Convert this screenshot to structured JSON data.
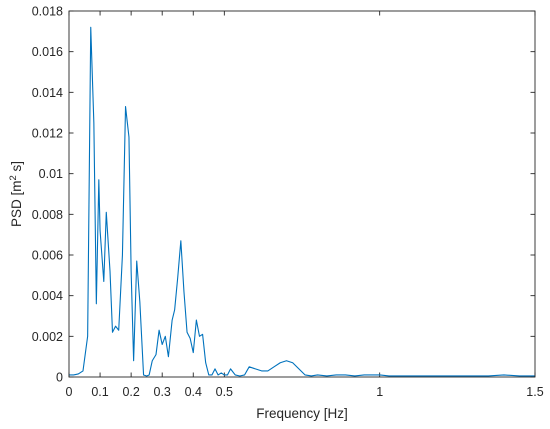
{
  "chart_data": {
    "type": "line",
    "title": "",
    "xlabel": "Frequency [Hz]",
    "ylabel_main": "PSD [m",
    "ylabel_sup": "2",
    "ylabel_tail": " s]",
    "xlim": [
      0,
      1.5
    ],
    "ylim": [
      0,
      0.018
    ],
    "xticks": [
      0,
      0.1,
      0.2,
      0.3,
      0.4,
      0.5,
      1,
      1.5
    ],
    "xtick_labels": [
      "0",
      "0.1",
      "0.2",
      "0.3",
      "0.4",
      "0.5",
      "1",
      "1.5"
    ],
    "yticks": [
      0,
      0.002,
      0.004,
      0.006,
      0.008,
      0.01,
      0.012,
      0.014,
      0.016,
      0.018
    ],
    "ytick_labels": [
      "0",
      "0.002",
      "0.004",
      "0.006",
      "0.008",
      "0.01",
      "0.012",
      "0.014",
      "0.016",
      "0.018"
    ],
    "grid": false,
    "line_color": "#0072BD",
    "series": [
      {
        "x": [
          0,
          0.015,
          0.03,
          0.045,
          0.06,
          0.07,
          0.08,
          0.088,
          0.096,
          0.1,
          0.112,
          0.12,
          0.132,
          0.14,
          0.15,
          0.16,
          0.172,
          0.182,
          0.193,
          0.2,
          0.208,
          0.218,
          0.228,
          0.24,
          0.25,
          0.258,
          0.268,
          0.28,
          0.29,
          0.3,
          0.31,
          0.32,
          0.332,
          0.34,
          0.35,
          0.36,
          0.37,
          0.38,
          0.39,
          0.4,
          0.41,
          0.42,
          0.43,
          0.44,
          0.45,
          0.46,
          0.47,
          0.48,
          0.49,
          0.5,
          0.51,
          0.52,
          0.535,
          0.55,
          0.565,
          0.58,
          0.6,
          0.62,
          0.64,
          0.66,
          0.68,
          0.7,
          0.72,
          0.74,
          0.76,
          0.78,
          0.8,
          0.83,
          0.86,
          0.89,
          0.92,
          0.95,
          0.98,
          1.0,
          1.03,
          1.06,
          1.1,
          1.15,
          1.2,
          1.25,
          1.3,
          1.35,
          1.4,
          1.45,
          1.5
        ],
        "y": [
          0.0001,
          0.0001,
          0.00015,
          0.0003,
          0.002,
          0.0172,
          0.0125,
          0.0036,
          0.0097,
          0.0072,
          0.0047,
          0.0081,
          0.0052,
          0.0022,
          0.0025,
          0.0023,
          0.006,
          0.0133,
          0.0118,
          0.0052,
          0.0008,
          0.0057,
          0.0037,
          0.0001,
          5e-05,
          0.0001,
          0.0008,
          0.0011,
          0.0023,
          0.0016,
          0.002,
          0.001,
          0.0028,
          0.0033,
          0.0049,
          0.0067,
          0.0042,
          0.0022,
          0.0019,
          0.0012,
          0.0028,
          0.002,
          0.0021,
          0.0007,
          0.0001,
          0.0001,
          0.0004,
          0.0001,
          0.0002,
          0.0001,
          0.0001,
          0.0004,
          0.0001,
          5e-05,
          0.0001,
          0.0005,
          0.0004,
          0.0003,
          0.0003,
          0.0005,
          0.0007,
          0.0008,
          0.0007,
          0.0004,
          0.0001,
          5e-05,
          0.0001,
          5e-05,
          0.0001,
          0.0001,
          5e-05,
          0.0001,
          0.0001,
          0.0001,
          5e-05,
          5e-05,
          5e-05,
          5e-05,
          5e-05,
          5e-05,
          5e-05,
          5e-05,
          0.0001,
          5e-05,
          5e-05
        ]
      }
    ]
  }
}
